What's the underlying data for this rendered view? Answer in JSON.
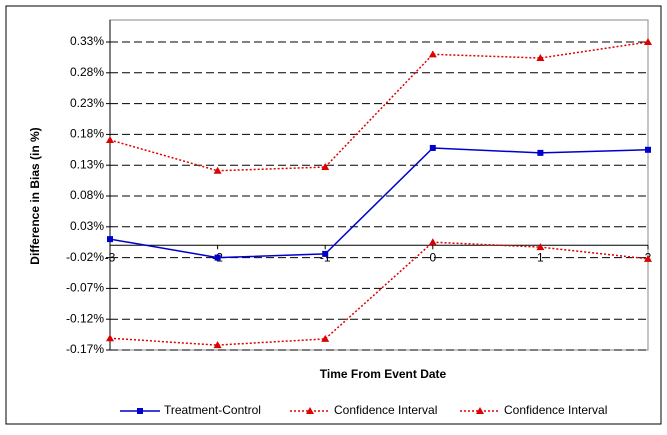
{
  "chart_data": {
    "type": "line",
    "x_label": "Time From Event Date",
    "y_label": "Difference in Bias (in %)",
    "x": [
      -3,
      -2,
      -1,
      0,
      1,
      2
    ],
    "xlim": [
      -3,
      2
    ],
    "xticks": [
      -3,
      -2,
      -1,
      0,
      1,
      2
    ],
    "ylim": [
      -0.17,
      0.33
    ],
    "yticks": [
      {
        "value": -0.17,
        "label": "-0.17%"
      },
      {
        "value": -0.12,
        "label": "-0.12%"
      },
      {
        "value": -0.07,
        "label": "-0.07%"
      },
      {
        "value": -0.02,
        "label": "-0.02%"
      },
      {
        "value": 0.03,
        "label": "0.03%"
      },
      {
        "value": 0.08,
        "label": "0.08%"
      },
      {
        "value": 0.13,
        "label": "0.13%"
      },
      {
        "value": 0.18,
        "label": "0.18%"
      },
      {
        "value": 0.23,
        "label": "0.23%"
      },
      {
        "value": 0.28,
        "label": "0.28%"
      },
      {
        "value": 0.33,
        "label": "0.33%"
      }
    ],
    "grid": true,
    "legend": "bottom",
    "series": [
      {
        "name": "Treatment-Control",
        "color": "#0000cc",
        "marker": "square",
        "dash": "solid",
        "values": [
          0.01,
          -0.02,
          -0.014,
          0.158,
          0.15,
          0.155
        ]
      },
      {
        "name": "Confidence Interval",
        "color": "#dd0000",
        "marker": "triangle",
        "dash": "dotted",
        "values": [
          0.171,
          0.121,
          0.127,
          0.31,
          0.304,
          0.33
        ]
      },
      {
        "name": "Confidence Interval",
        "color": "#dd0000",
        "marker": "triangle",
        "dash": "dotted",
        "values": [
          -0.151,
          -0.162,
          -0.152,
          0.005,
          -0.003,
          -0.022
        ]
      }
    ]
  }
}
